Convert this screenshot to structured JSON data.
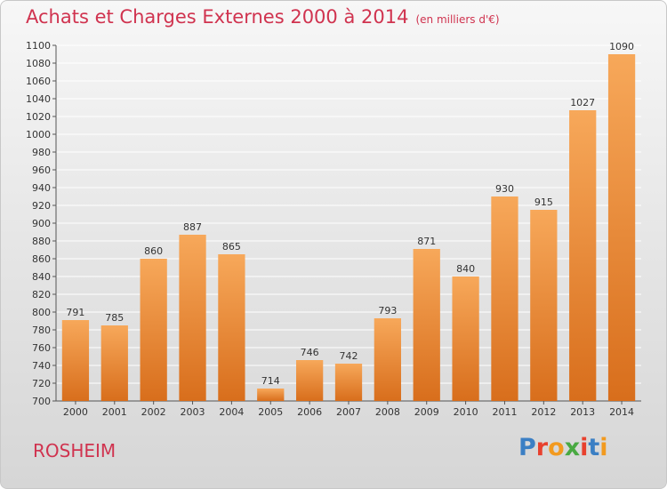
{
  "header": {
    "title": "Achats et Charges Externes 2000 à 2014",
    "unit": "(en milliers d'€)"
  },
  "footer": {
    "city": "ROSHEIM",
    "logo_text": "Proxiti"
  },
  "colors": {
    "title": "#d0334f",
    "bar_light": "#f7a85a",
    "bar_dark": "#d86e1c",
    "grid": "#ffffff",
    "logo": [
      "#3b7fc4",
      "#e8412e",
      "#f29a1f",
      "#49a942",
      "#e8412e",
      "#3b7fc4",
      "#f29a1f"
    ]
  },
  "chart_data": {
    "type": "bar",
    "categories": [
      "2000",
      "2001",
      "2002",
      "2003",
      "2004",
      "2005",
      "2006",
      "2007",
      "2008",
      "2009",
      "2010",
      "2011",
      "2012",
      "2013",
      "2014"
    ],
    "values": [
      791,
      785,
      860,
      887,
      865,
      714,
      746,
      742,
      793,
      871,
      840,
      930,
      915,
      1027,
      1090
    ],
    "ylim": [
      700,
      1100
    ],
    "ytick_step": 20,
    "grid": true,
    "data_labels": true
  }
}
